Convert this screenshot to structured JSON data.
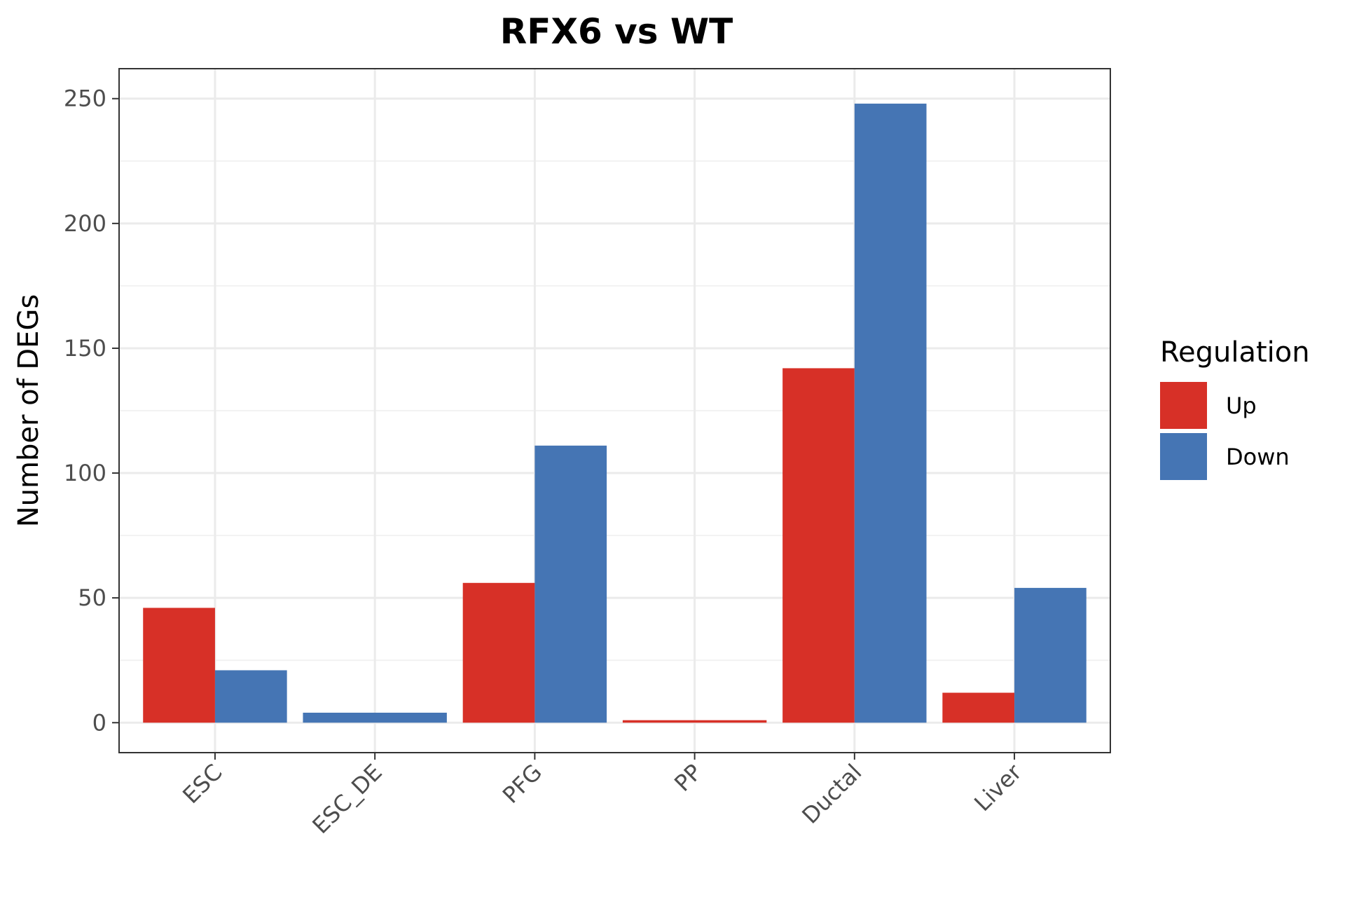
{
  "chart_data": {
    "type": "bar",
    "title": "RFX6 vs WT",
    "xlabel": "",
    "ylabel": "Number of DEGs",
    "categories": [
      "ESC",
      "ESC_DE",
      "PFG",
      "PP",
      "Ductal",
      "Liver"
    ],
    "series": [
      {
        "name": "Up",
        "color": "#D73027",
        "values": [
          46,
          0,
          56,
          1,
          142,
          12
        ]
      },
      {
        "name": "Down",
        "color": "#4575B4",
        "values": [
          21,
          4,
          111,
          0,
          248,
          54
        ]
      }
    ],
    "ylim": [
      -12,
      262
    ],
    "yticks": [
      0,
      50,
      100,
      150,
      200,
      250
    ],
    "ytick_labels": [
      "0",
      "50",
      "100",
      "150",
      "200",
      "250"
    ],
    "grid": true,
    "legend": {
      "title": "Regulation",
      "position": "right",
      "items": [
        {
          "label": "Up",
          "color": "#D73027"
        },
        {
          "label": "Down",
          "color": "#4575B4"
        }
      ]
    }
  }
}
